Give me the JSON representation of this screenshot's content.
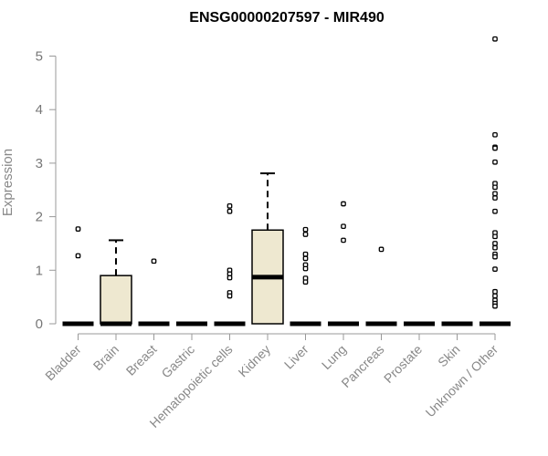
{
  "chart_data": {
    "type": "boxplot",
    "title": "ENSG00000207597 - MIR490",
    "xlabel": "",
    "ylabel": "Expression",
    "ylim": [
      0,
      5.5
    ],
    "yticks": [
      0,
      1,
      2,
      3,
      4,
      5
    ],
    "grid": false,
    "box_color": "#EEE8D0",
    "categories": [
      "Bladder",
      "Brain",
      "Breast",
      "Gastric",
      "Hematopoietic cells",
      "Kidney",
      "Liver",
      "Lung",
      "Pancreas",
      "Prostate",
      "Skin",
      "Unknown / Other"
    ],
    "boxes": [
      {
        "category": "Bladder",
        "min": 0,
        "q1": 0,
        "median": 0,
        "q3": 0,
        "max": 0,
        "outliers": [
          1.77,
          1.27
        ]
      },
      {
        "category": "Brain",
        "min": 0,
        "q1": 0,
        "median": 0,
        "q3": 0.9,
        "max": 1.56,
        "outliers": []
      },
      {
        "category": "Breast",
        "min": 0,
        "q1": 0,
        "median": 0,
        "q3": 0,
        "max": 0,
        "outliers": [
          1.17
        ]
      },
      {
        "category": "Gastric",
        "min": 0,
        "q1": 0,
        "median": 0,
        "q3": 0,
        "max": 0,
        "outliers": []
      },
      {
        "category": "Hematopoietic cells",
        "min": 0,
        "q1": 0,
        "median": 0,
        "q3": 0,
        "max": 0,
        "outliers": [
          2.2,
          2.1,
          1.0,
          0.93,
          0.86,
          0.58,
          0.52
        ]
      },
      {
        "category": "Kidney",
        "min": 0,
        "q1": 0,
        "median": 0.87,
        "q3": 1.75,
        "max": 2.81,
        "outliers": []
      },
      {
        "category": "Liver",
        "min": 0,
        "q1": 0,
        "median": 0,
        "q3": 0,
        "max": 0,
        "outliers": [
          1.76,
          1.67,
          1.3,
          1.22,
          1.1,
          1.03,
          0.85,
          0.78
        ]
      },
      {
        "category": "Lung",
        "min": 0,
        "q1": 0,
        "median": 0,
        "q3": 0,
        "max": 0,
        "outliers": [
          2.24,
          1.82,
          1.56
        ]
      },
      {
        "category": "Pancreas",
        "min": 0,
        "q1": 0,
        "median": 0,
        "q3": 0,
        "max": 0,
        "outliers": [
          1.39
        ]
      },
      {
        "category": "Prostate",
        "min": 0,
        "q1": 0,
        "median": 0,
        "q3": 0,
        "max": 0,
        "outliers": []
      },
      {
        "category": "Skin",
        "min": 0,
        "q1": 0,
        "median": 0,
        "q3": 0,
        "max": 0,
        "outliers": []
      },
      {
        "category": "Unknown / Other",
        "min": 0,
        "q1": 0,
        "median": 0,
        "q3": 0,
        "max": 0,
        "outliers": [
          5.32,
          3.53,
          3.3,
          3.28,
          3.02,
          2.62,
          2.55,
          2.43,
          2.35,
          2.1,
          1.7,
          1.63,
          1.5,
          1.42,
          1.3,
          1.25,
          1.02,
          0.6,
          0.52,
          0.44,
          0.38,
          0.33
        ]
      }
    ]
  }
}
